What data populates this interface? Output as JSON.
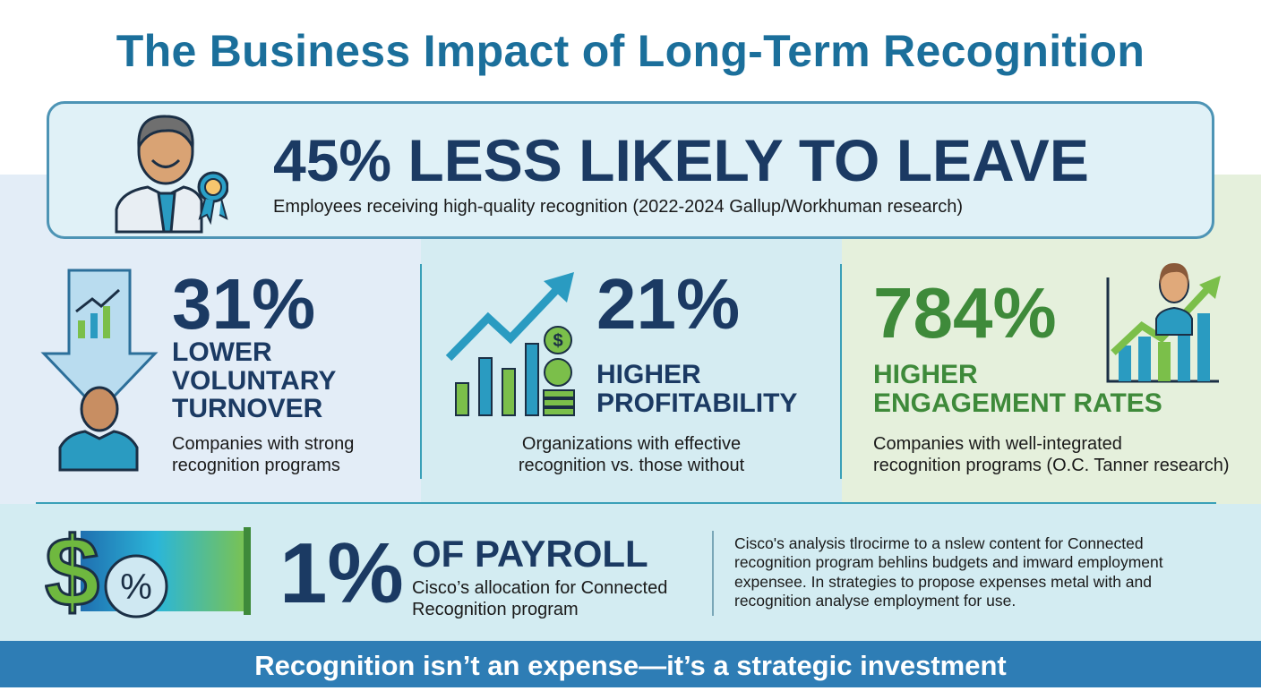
{
  "title": "The Business Impact of Long-Term Recognition",
  "hero": {
    "headline": "45% LESS LIKELY TO LEAVE",
    "description": "Employees receiving high-quality recognition (2022-2024 Gallup/Workhuman research)",
    "icon": "employee-with-award-ribbon"
  },
  "stats": [
    {
      "value": "31%",
      "label_lines": [
        "LOWER",
        "VOLUNTARY",
        "TURNOVER"
      ],
      "description_lines": [
        "Companies with strong",
        "recognition programs"
      ],
      "icon": "down-arrow-chart-employee",
      "color": "#1b3a63"
    },
    {
      "value": "21%",
      "label_lines": [
        "HIGHER",
        "PROFITABILITY"
      ],
      "description_lines": [
        "Organizations with effective",
        "recognition vs. those without"
      ],
      "icon": "rising-bar-chart-coins",
      "color": "#1b3a63"
    },
    {
      "value": "784%",
      "label_lines": [
        "HIGHER",
        "ENGAGEMENT RATES"
      ],
      "description_lines": [
        "Companies with well-integrated",
        "recognition programs (O.C. Tanner research)"
      ],
      "icon": "employee-rising-chart",
      "color": "#3e8a3a"
    }
  ],
  "payroll": {
    "value": "1%",
    "label": "OF PAYROLL",
    "description_lines": [
      "Cisco’s allocation for Connected",
      "Recognition program"
    ],
    "icon": "dollar-percent-gradient",
    "analysis_lines": [
      "Cisco's analysis tlrocirme to a nslew content for Connected",
      "recognition program behlins budgets and imward employment",
      "expensee. In strategies to propose expenses metal with and",
      "recognition analyse employment for use."
    ]
  },
  "footer": "Recognition isn’t an expense—it’s a strategic investment"
}
